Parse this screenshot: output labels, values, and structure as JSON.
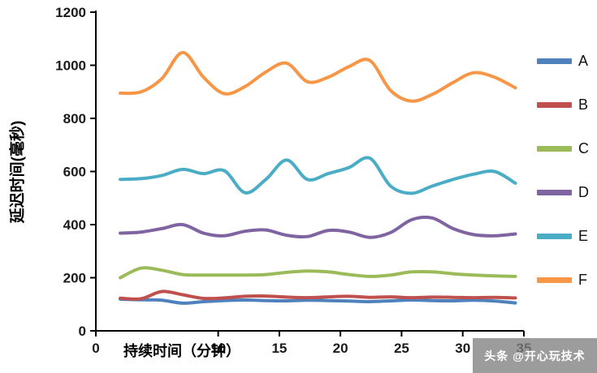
{
  "watermark": {
    "text": "头条 @开心玩技术"
  },
  "chart_data": {
    "type": "line",
    "title": "",
    "xlabel": "持续时间（分钟）",
    "ylabel": "延迟时间(毫秒)",
    "xlim": [
      0,
      35
    ],
    "ylim": [
      0,
      1200
    ],
    "xticks": [
      0,
      10,
      15,
      20,
      25,
      30,
      35
    ],
    "yticks": [
      0,
      200,
      400,
      600,
      800,
      1000,
      1200
    ],
    "grid": false,
    "legend_position": "right",
    "line_style": "smooth",
    "x": [
      2,
      3.7,
      5.4,
      7.1,
      8.8,
      10.5,
      12.2,
      13.9,
      15.6,
      17.3,
      19,
      20.7,
      22.4,
      24.1,
      25.8,
      27.5,
      29.2,
      30.9,
      32.6,
      34.3
    ],
    "series": [
      {
        "name": "A",
        "color": "#4F81BD",
        "values": [
          119,
          117,
          115,
          104,
          110,
          114,
          116,
          114,
          113,
          115,
          114,
          112,
          110,
          113,
          116,
          114,
          113,
          115,
          112,
          105
        ]
      },
      {
        "name": "B",
        "color": "#C0504D",
        "values": [
          123,
          121,
          148,
          136,
          122,
          124,
          130,
          131,
          127,
          125,
          128,
          130,
          126,
          128,
          125,
          127,
          126,
          125,
          126,
          124
        ]
      },
      {
        "name": "C",
        "color": "#9BBB59",
        "values": [
          200,
          236,
          228,
          212,
          210,
          210,
          210,
          212,
          220,
          225,
          222,
          212,
          205,
          210,
          222,
          222,
          215,
          210,
          207,
          205
        ]
      },
      {
        "name": "D",
        "color": "#8064A2",
        "values": [
          368,
          372,
          385,
          400,
          368,
          358,
          375,
          380,
          360,
          355,
          378,
          372,
          352,
          370,
          418,
          425,
          385,
          362,
          358,
          365
        ]
      },
      {
        "name": "E",
        "color": "#4BACC6",
        "values": [
          570,
          573,
          585,
          608,
          592,
          603,
          520,
          570,
          643,
          570,
          592,
          615,
          650,
          545,
          518,
          545,
          570,
          590,
          600,
          556
        ]
      },
      {
        "name": "F",
        "color": "#F79646",
        "values": [
          895,
          900,
          950,
          1048,
          955,
          893,
          920,
          975,
          1008,
          938,
          955,
          995,
          1018,
          905,
          865,
          890,
          935,
          972,
          955,
          915
        ]
      }
    ]
  }
}
